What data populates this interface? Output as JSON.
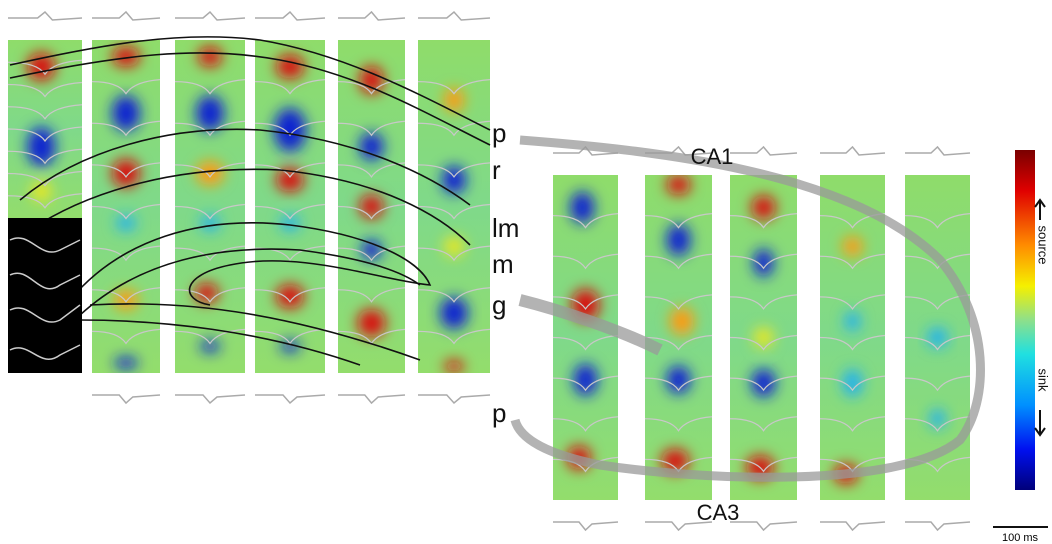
{
  "layers": [
    "p",
    "r",
    "lm",
    "m",
    "g",
    "p"
  ],
  "regions": {
    "top": "CA1",
    "bottom": "CA3"
  },
  "colorbar": {
    "top": "source",
    "bottom": "sink"
  },
  "scale_bar": "100 ms"
}
